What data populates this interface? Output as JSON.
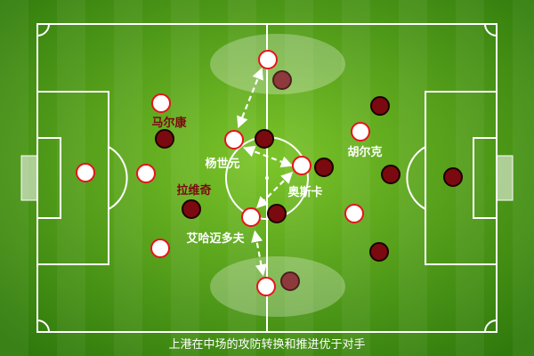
{
  "caption": "上港在中场的攻防转换和推进优于对手",
  "labels": {
    "malcom": "马尔康",
    "yang_shiyuan": "杨世元",
    "oscar": "奥斯卡",
    "ravic": "拉维奇",
    "akhmedov": "艾哈迈多夫",
    "hulk": "胡尔克"
  },
  "colors": {
    "pitch_light": "#6bbf1e",
    "pitch_dark": "#4a9a12",
    "home_player_fill": "#ffffff",
    "home_player_stroke": "#e8121b",
    "away_player_fill": "#7a0a0f",
    "away_label": "#7a0a0f",
    "line": "#ffffff"
  }
}
